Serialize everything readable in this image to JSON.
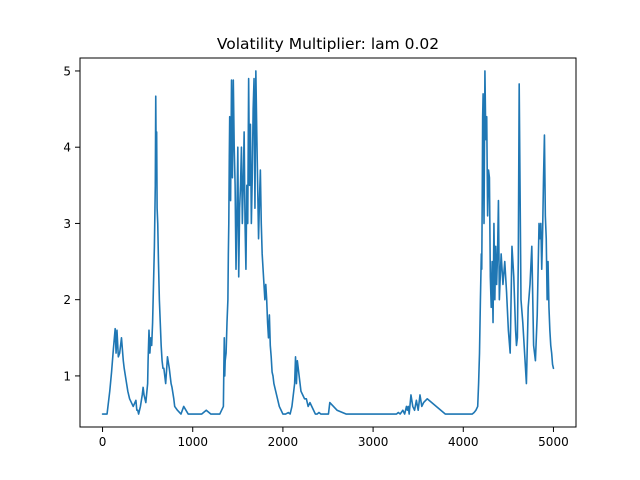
{
  "chart_data": {
    "type": "line",
    "title": "Volatility Multiplier: lam 0.02",
    "xlabel": "",
    "ylabel": "",
    "xlim": [
      -250,
      5250
    ],
    "ylim": [
      0.33,
      5.17
    ],
    "x_ticks": [
      {
        "value": 0,
        "label": "0"
      },
      {
        "value": 1000,
        "label": "1000"
      },
      {
        "value": 2000,
        "label": "2000"
      },
      {
        "value": 3000,
        "label": "3000"
      },
      {
        "value": 4000,
        "label": "4000"
      },
      {
        "value": 5000,
        "label": "5000"
      }
    ],
    "y_ticks": [
      {
        "value": 1,
        "label": "1"
      },
      {
        "value": 2,
        "label": "2"
      },
      {
        "value": 3,
        "label": "3"
      },
      {
        "value": 4,
        "label": "4"
      },
      {
        "value": 5,
        "label": "5"
      }
    ],
    "grid": false,
    "series": [
      {
        "name": "",
        "color": "#1f77b4",
        "x": [
          0,
          50,
          80,
          100,
          120,
          140,
          150,
          160,
          175,
          190,
          210,
          230,
          240,
          260,
          280,
          300,
          340,
          370,
          380,
          390,
          400,
          420,
          440,
          450,
          460,
          480,
          500,
          505,
          515,
          525,
          535,
          545,
          555,
          565,
          575,
          585,
          590,
          595,
          600,
          605,
          612,
          620,
          630,
          640,
          650,
          660,
          670,
          680,
          690,
          700,
          720,
          740,
          750,
          760,
          770,
          790,
          800,
          830,
          870,
          900,
          950,
          1000,
          1050,
          1100,
          1150,
          1200,
          1250,
          1300,
          1340,
          1345,
          1350,
          1355,
          1360,
          1370,
          1380,
          1390,
          1395,
          1400,
          1405,
          1410,
          1420,
          1430,
          1440,
          1450,
          1460,
          1470,
          1480,
          1490,
          1500,
          1510,
          1520,
          1530,
          1540,
          1550,
          1560,
          1570,
          1580,
          1590,
          1600,
          1610,
          1620,
          1630,
          1640,
          1650,
          1660,
          1670,
          1680,
          1690,
          1700,
          1710,
          1720,
          1730,
          1740,
          1750,
          1760,
          1770,
          1780,
          1790,
          1800,
          1810,
          1820,
          1830,
          1840,
          1850,
          1860,
          1870,
          1880,
          1890,
          1900,
          1920,
          1940,
          1960,
          1980,
          2000,
          2030,
          2060,
          2080,
          2100,
          2120,
          2130,
          2140,
          2150,
          2160,
          2180,
          2200,
          2220,
          2240,
          2260,
          2280,
          2300,
          2340,
          2360,
          2380,
          2400,
          2420,
          2450,
          2500,
          2505,
          2520,
          2600,
          2700,
          2800,
          2900,
          3000,
          3100,
          3200,
          3260,
          3280,
          3300,
          3330,
          3350,
          3370,
          3380,
          3390,
          3400,
          3420,
          3440,
          3460,
          3480,
          3500,
          3520,
          3540,
          3560,
          3600,
          3700,
          3800,
          3900,
          4000,
          4050,
          4080,
          4100,
          4120,
          4140,
          4160,
          4170,
          4180,
          4190,
          4200,
          4205,
          4210,
          4215,
          4220,
          4230,
          4240,
          4250,
          4260,
          4270,
          4280,
          4290,
          4300,
          4310,
          4320,
          4330,
          4340,
          4350,
          4360,
          4370,
          4380,
          4390,
          4400,
          4420,
          4440,
          4460,
          4480,
          4500,
          4520,
          4540,
          4560,
          4580,
          4590,
          4600,
          4610,
          4620,
          4640,
          4660,
          4680,
          4700,
          4720,
          4740,
          4760,
          4780,
          4800,
          4820,
          4840,
          4850,
          4860,
          4870,
          4880,
          4890,
          4900,
          4910,
          4920,
          4930,
          4940,
          4950,
          4960,
          4970,
          4980,
          4990,
          5000
        ],
        "y": [
          0.5,
          0.5,
          0.8,
          1.05,
          1.35,
          1.62,
          1.3,
          1.6,
          1.25,
          1.3,
          1.5,
          1.2,
          1.1,
          0.95,
          0.8,
          0.7,
          0.6,
          0.68,
          0.55,
          0.55,
          0.5,
          0.6,
          0.75,
          0.85,
          0.75,
          0.65,
          0.9,
          1.2,
          1.6,
          1.3,
          1.5,
          1.4,
          1.7,
          2.2,
          2.7,
          3.5,
          4.67,
          3.8,
          4.2,
          3.2,
          3.0,
          2.5,
          2.0,
          1.7,
          1.4,
          1.2,
          1.1,
          1.1,
          1.0,
          0.9,
          1.25,
          1.1,
          1.0,
          0.9,
          0.85,
          0.7,
          0.6,
          0.55,
          0.5,
          0.6,
          0.5,
          0.5,
          0.5,
          0.5,
          0.55,
          0.5,
          0.5,
          0.5,
          0.6,
          1.1,
          1.5,
          1.0,
          1.2,
          1.3,
          1.7,
          2.0,
          2.6,
          3.0,
          3.8,
          4.4,
          3.3,
          4.88,
          3.6,
          4.88,
          4.0,
          3.5,
          2.4,
          3.1,
          4.0,
          2.3,
          3.2,
          3.5,
          4.0,
          3.0,
          3.5,
          4.2,
          3.0,
          2.4,
          3.5,
          3.0,
          4.9,
          3.5,
          4.3,
          3.0,
          3.6,
          4.5,
          4.9,
          3.2,
          5.0,
          4.2,
          3.5,
          2.8,
          3.3,
          3.7,
          3.0,
          2.6,
          2.4,
          2.2,
          2.0,
          2.2,
          2.0,
          1.7,
          1.5,
          1.8,
          1.4,
          1.25,
          1.05,
          1.0,
          0.9,
          0.8,
          0.7,
          0.6,
          0.55,
          0.5,
          0.5,
          0.52,
          0.5,
          0.6,
          0.8,
          0.9,
          1.25,
          0.9,
          1.2,
          1.0,
          0.8,
          0.75,
          0.7,
          0.7,
          0.6,
          0.65,
          0.55,
          0.5,
          0.5,
          0.52,
          0.5,
          0.5,
          0.5,
          0.5,
          0.65,
          0.55,
          0.5,
          0.5,
          0.5,
          0.5,
          0.5,
          0.5,
          0.5,
          0.52,
          0.5,
          0.55,
          0.5,
          0.6,
          0.55,
          0.6,
          0.5,
          0.75,
          0.6,
          0.55,
          0.68,
          0.55,
          0.75,
          0.6,
          0.65,
          0.7,
          0.6,
          0.5,
          0.5,
          0.5,
          0.5,
          0.5,
          0.5,
          0.52,
          0.55,
          0.6,
          0.9,
          1.3,
          2.0,
          2.6,
          2.4,
          3.3,
          4.4,
          4.7,
          3.0,
          5.0,
          4.1,
          4.4,
          3.1,
          3.7,
          3.6,
          2.3,
          1.9,
          2.5,
          1.7,
          3.0,
          2.0,
          2.7,
          2.2,
          2.6,
          3.3,
          2.0,
          2.6,
          2.2,
          2.5,
          2.1,
          1.6,
          1.3,
          2.7,
          2.3,
          1.6,
          1.4,
          1.5,
          2.5,
          4.83,
          2.0,
          1.7,
          1.3,
          0.9,
          1.9,
          2.2,
          2.7,
          1.4,
          1.2,
          1.8,
          3.0,
          2.8,
          3.0,
          2.4,
          2.9,
          3.6,
          4.16,
          3.1,
          2.8,
          2.0,
          2.5,
          1.9,
          1.6,
          1.4,
          1.3,
          1.15,
          1.1
        ]
      }
    ]
  }
}
